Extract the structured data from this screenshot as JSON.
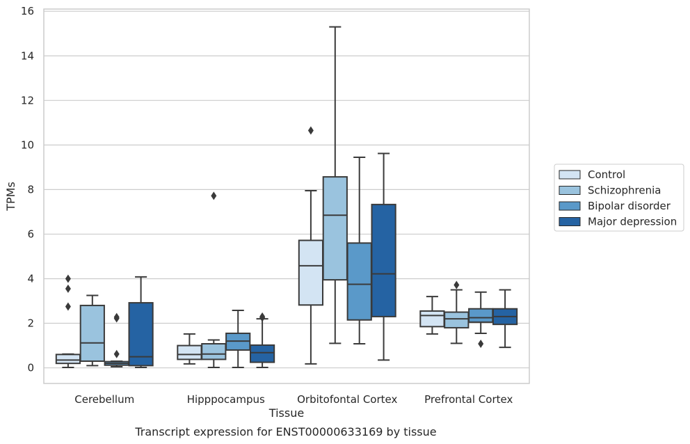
{
  "chart_data": {
    "type": "box",
    "title": "",
    "caption": "Transcript expression for ENST00000633169 by tissue",
    "xlabel": "Tissue",
    "ylabel": "TPMs",
    "ylim": [
      -0.7,
      16.1
    ],
    "yticks": [
      0,
      2,
      4,
      6,
      8,
      10,
      12,
      14,
      16
    ],
    "grid": "horizontal",
    "legend_position": "right",
    "categories": [
      "Cerebellum",
      "Hipppocampus",
      "Orbitofontal Cortex",
      "Prefrontal Cortex"
    ],
    "series": [
      {
        "name": "Control",
        "color": "#d3e4f3",
        "boxes": [
          {
            "min": 0.02,
            "q1": 0.2,
            "median": 0.35,
            "q3": 0.6,
            "max": 0.62,
            "outliers": [
              2.75,
              3.55,
              4.0
            ]
          },
          {
            "min": 0.18,
            "q1": 0.38,
            "median": 0.6,
            "q3": 1.0,
            "max": 1.52,
            "outliers": []
          },
          {
            "min": 0.18,
            "q1": 2.82,
            "median": 4.58,
            "q3": 5.72,
            "max": 7.95,
            "outliers": [
              10.65
            ]
          },
          {
            "min": 1.52,
            "q1": 1.85,
            "median": 2.35,
            "q3": 2.55,
            "max": 3.2,
            "outliers": []
          }
        ]
      },
      {
        "name": "Schizophrenia",
        "color": "#9ac3de",
        "boxes": [
          {
            "min": 0.1,
            "q1": 0.3,
            "median": 1.12,
            "q3": 2.8,
            "max": 3.25,
            "outliers": []
          },
          {
            "min": 0.02,
            "q1": 0.38,
            "median": 0.62,
            "q3": 1.08,
            "max": 1.25,
            "outliers": [
              7.72
            ]
          },
          {
            "min": 1.1,
            "q1": 3.95,
            "median": 6.85,
            "q3": 8.57,
            "max": 15.3,
            "outliers": []
          },
          {
            "min": 1.1,
            "q1": 1.8,
            "median": 2.2,
            "q3": 2.5,
            "max": 3.5,
            "outliers": [
              3.72
            ]
          }
        ]
      },
      {
        "name": "Bipolar disorder",
        "color": "#5a99c9",
        "boxes": [
          {
            "min": 0.05,
            "q1": 0.12,
            "median": 0.2,
            "q3": 0.28,
            "max": 0.3,
            "outliers": [
              0.62,
              2.22,
              2.28
            ]
          },
          {
            "min": 0.02,
            "q1": 0.8,
            "median": 1.2,
            "q3": 1.55,
            "max": 2.58,
            "outliers": []
          },
          {
            "min": 1.08,
            "q1": 2.15,
            "median": 3.75,
            "q3": 5.6,
            "max": 9.45,
            "outliers": []
          },
          {
            "min": 1.55,
            "q1": 2.05,
            "median": 2.25,
            "q3": 2.65,
            "max": 3.4,
            "outliers": [
              1.08
            ]
          }
        ]
      },
      {
        "name": "Major depression",
        "color": "#2563a3",
        "boxes": [
          {
            "min": 0.02,
            "q1": 0.1,
            "median": 0.5,
            "q3": 2.92,
            "max": 4.08,
            "outliers": []
          },
          {
            "min": 0.02,
            "q1": 0.25,
            "median": 0.68,
            "q3": 1.02,
            "max": 2.2,
            "outliers": [
              2.25,
              2.3
            ]
          },
          {
            "min": 0.35,
            "q1": 2.3,
            "median": 4.22,
            "q3": 7.33,
            "max": 9.62,
            "outliers": []
          },
          {
            "min": 0.92,
            "q1": 1.95,
            "median": 2.3,
            "q3": 2.65,
            "max": 3.5,
            "outliers": []
          }
        ]
      }
    ]
  }
}
